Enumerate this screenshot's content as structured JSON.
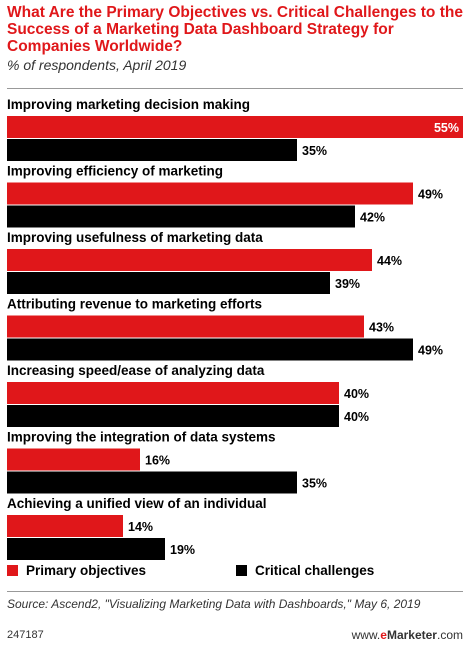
{
  "chart_data": {
    "type": "bar",
    "orientation": "horizontal",
    "title": "What Are the Primary Objectives vs. Critical Challenges to the Success of a Marketing Data Dashboard Strategy for Companies Worldwide?",
    "subtitle": "% of respondents, April 2019",
    "categories": [
      "Improving marketing decision making",
      "Improving efficiency of marketing",
      "Improving usefulness of marketing data",
      "Attributing revenue to marketing efforts",
      "Increasing speed/ease of analyzing data",
      "Improving the integration of data systems",
      "Achieving a unified view of an individual"
    ],
    "series": [
      {
        "name": "Primary objectives",
        "color": "#e0171a",
        "values": [
          55,
          49,
          44,
          43,
          40,
          16,
          14
        ]
      },
      {
        "name": "Critical challenges",
        "color": "#000000",
        "values": [
          35,
          42,
          39,
          49,
          40,
          35,
          19
        ]
      }
    ],
    "value_suffix": "%",
    "xlim": [
      0,
      55
    ],
    "grid": false,
    "legend_position": "bottom"
  },
  "source": "Source: Ascend2, \"Visualizing Marketing Data with Dashboards,\" May 6, 2019",
  "chart_id": "247187",
  "brand": {
    "prefix": "www.",
    "e": "e",
    "name": "Marketer",
    "suffix": ".com"
  }
}
